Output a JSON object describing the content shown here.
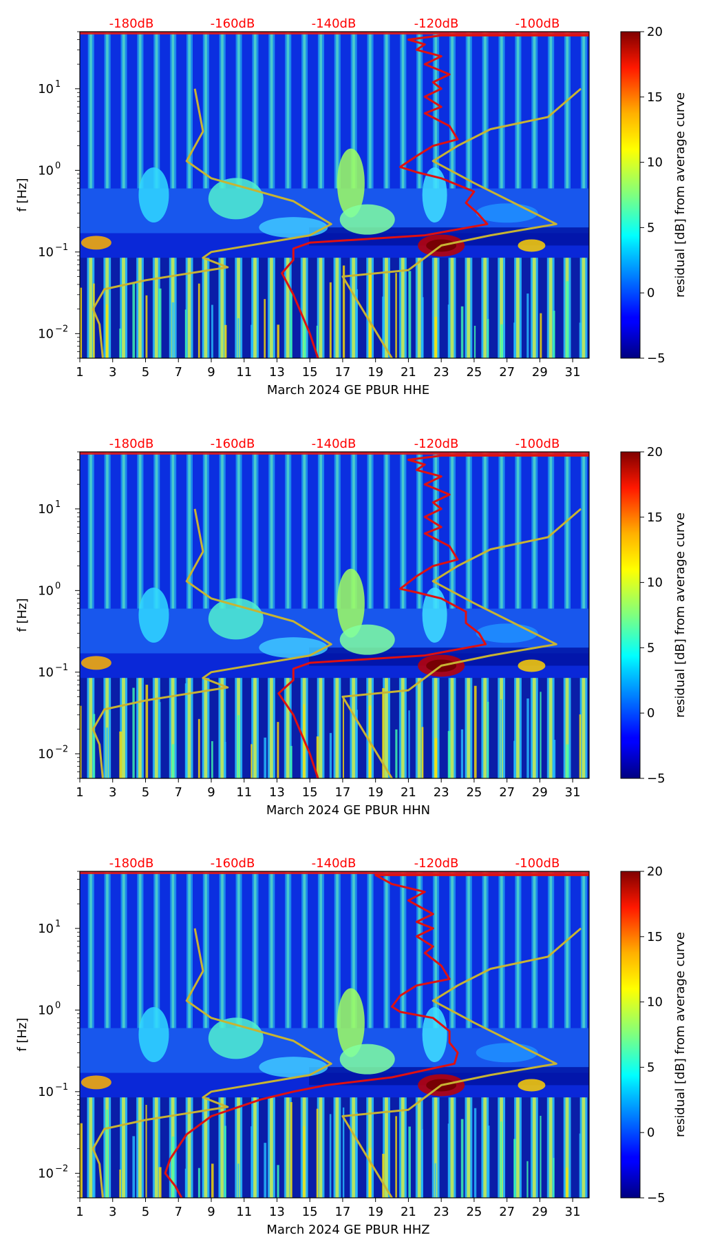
{
  "chart_data": [
    {
      "type": "heatmap",
      "panel_id": "p0",
      "xlabel": "March 2024 GE PBUR  HHE",
      "ylabel": "f [Hz]",
      "x_ticks": [
        "1",
        "3",
        "5",
        "7",
        "9",
        "11",
        "13",
        "15",
        "17",
        "19",
        "21",
        "23",
        "25",
        "27",
        "29",
        "31"
      ],
      "xlim": [
        1,
        32
      ],
      "y_scale": "log",
      "ylim": [
        0.005,
        50
      ],
      "y_tick_labels": [
        {
          "base": "10",
          "exp": "1"
        },
        {
          "base": "10",
          "exp": "0"
        },
        {
          "base": "10",
          "exp": "−1"
        },
        {
          "base": "10",
          "exp": "−2"
        }
      ],
      "top_axis_labels": [
        "-180dB",
        "-160dB",
        "-140dB",
        "-120dB",
        "-100dB"
      ],
      "colorbar": {
        "label": "residual [dB] from average curve",
        "ticks": [
          "20",
          "15",
          "10",
          "5",
          "0",
          "−5"
        ],
        "range": [
          -5,
          20
        ]
      },
      "series": [
        {
          "name": "noise model (yellow)",
          "color": "#c8b432",
          "points": [
            [
              8,
              10
            ],
            [
              8.5,
              3
            ],
            [
              7.5,
              1.3
            ],
            [
              9,
              0.8
            ],
            [
              14,
              0.42
            ],
            [
              16.3,
              0.22
            ],
            [
              15,
              0.16
            ],
            [
              9,
              0.1
            ],
            [
              8.5,
              0.085
            ],
            [
              10,
              0.065
            ],
            [
              5,
              0.045
            ],
            [
              2.5,
              0.035
            ],
            [
              1.8,
              0.02
            ],
            [
              2.2,
              0.013
            ],
            [
              2.4,
              0.005
            ]
          ]
        },
        {
          "name": "noise model right (yellow)",
          "color": "#c8b432",
          "points": [
            [
              31.5,
              10
            ],
            [
              29.5,
              4.5
            ],
            [
              26,
              3.2
            ],
            [
              24,
              2
            ],
            [
              22.5,
              1.3
            ],
            [
              25,
              0.7
            ],
            [
              30,
              0.22
            ],
            [
              26,
              0.16
            ],
            [
              23,
              0.12
            ],
            [
              21,
              0.06
            ],
            [
              17,
              0.05
            ],
            [
              20,
              0.005
            ]
          ]
        },
        {
          "name": "median PSD (red)",
          "color": "#e01010",
          "points": [
            [
              32,
              45
            ],
            [
              23,
              45
            ],
            [
              21,
              40
            ],
            [
              22,
              35
            ],
            [
              21.5,
              30
            ],
            [
              23,
              25
            ],
            [
              22,
              20
            ],
            [
              23.5,
              15
            ],
            [
              22.5,
              12
            ],
            [
              23,
              10
            ],
            [
              22,
              8
            ],
            [
              23,
              6
            ],
            [
              22,
              5
            ],
            [
              23.5,
              3.5
            ],
            [
              24,
              2.4
            ],
            [
              22.5,
              2
            ],
            [
              21.5,
              1.5
            ],
            [
              20.5,
              1.1
            ],
            [
              21.5,
              0.95
            ],
            [
              23,
              0.8
            ],
            [
              25,
              0.55
            ],
            [
              24.5,
              0.4
            ],
            [
              25.2,
              0.3
            ],
            [
              25.8,
              0.22
            ],
            [
              22,
              0.16
            ],
            [
              15,
              0.13
            ],
            [
              14,
              0.11
            ],
            [
              14,
              0.08
            ],
            [
              13.3,
              0.055
            ],
            [
              14,
              0.03
            ],
            [
              15,
              0.01
            ],
            [
              15.5,
              0.005
            ]
          ]
        }
      ]
    },
    {
      "type": "heatmap",
      "panel_id": "p1",
      "xlabel": "March 2024 GE PBUR  HHN",
      "ylabel": "f [Hz]",
      "x_ticks": [
        "1",
        "3",
        "5",
        "7",
        "9",
        "11",
        "13",
        "15",
        "17",
        "19",
        "21",
        "23",
        "25",
        "27",
        "29",
        "31"
      ],
      "xlim": [
        1,
        32
      ],
      "y_scale": "log",
      "ylim": [
        0.005,
        50
      ],
      "y_tick_labels": [
        {
          "base": "10",
          "exp": "1"
        },
        {
          "base": "10",
          "exp": "0"
        },
        {
          "base": "10",
          "exp": "−1"
        },
        {
          "base": "10",
          "exp": "−2"
        }
      ],
      "top_axis_labels": [
        "-180dB",
        "-160dB",
        "-140dB",
        "-120dB",
        "-100dB"
      ],
      "colorbar": {
        "label": "residual [dB] from average curve",
        "ticks": [
          "20",
          "15",
          "10",
          "5",
          "0",
          "−5"
        ],
        "range": [
          -5,
          20
        ]
      },
      "series": [
        {
          "name": "noise model (yellow)",
          "color": "#c8b432",
          "points": [
            [
              8,
              10
            ],
            [
              8.5,
              3
            ],
            [
              7.5,
              1.3
            ],
            [
              9,
              0.8
            ],
            [
              14,
              0.42
            ],
            [
              16.3,
              0.22
            ],
            [
              15,
              0.16
            ],
            [
              9,
              0.1
            ],
            [
              8.5,
              0.085
            ],
            [
              10,
              0.065
            ],
            [
              5,
              0.045
            ],
            [
              2.5,
              0.035
            ],
            [
              1.8,
              0.02
            ],
            [
              2.2,
              0.013
            ],
            [
              2.4,
              0.005
            ]
          ]
        },
        {
          "name": "noise model right (yellow)",
          "color": "#c8b432",
          "points": [
            [
              31.5,
              10
            ],
            [
              29.5,
              4.5
            ],
            [
              26,
              3.2
            ],
            [
              24,
              2
            ],
            [
              22.5,
              1.3
            ],
            [
              25,
              0.7
            ],
            [
              30,
              0.22
            ],
            [
              26,
              0.16
            ],
            [
              23,
              0.12
            ],
            [
              21,
              0.06
            ],
            [
              17,
              0.05
            ],
            [
              20,
              0.005
            ]
          ]
        },
        {
          "name": "median PSD (red)",
          "color": "#e01010",
          "points": [
            [
              32,
              45
            ],
            [
              23,
              45
            ],
            [
              21,
              40
            ],
            [
              22,
              35
            ],
            [
              21.5,
              30
            ],
            [
              23,
              25
            ],
            [
              22,
              20
            ],
            [
              23.5,
              15
            ],
            [
              22.5,
              12
            ],
            [
              23,
              10
            ],
            [
              22,
              8
            ],
            [
              23,
              6
            ],
            [
              22,
              5
            ],
            [
              23.5,
              3.5
            ],
            [
              24,
              2.4
            ],
            [
              22.5,
              2
            ],
            [
              21.5,
              1.5
            ],
            [
              20.5,
              1.05
            ],
            [
              21.5,
              0.95
            ],
            [
              23,
              0.8
            ],
            [
              24.5,
              0.55
            ],
            [
              24.5,
              0.4
            ],
            [
              25.3,
              0.3
            ],
            [
              25.7,
              0.22
            ],
            [
              22,
              0.16
            ],
            [
              15,
              0.13
            ],
            [
              14,
              0.11
            ],
            [
              14,
              0.08
            ],
            [
              13.1,
              0.055
            ],
            [
              14,
              0.03
            ],
            [
              15,
              0.01
            ],
            [
              15.5,
              0.005
            ]
          ]
        }
      ]
    },
    {
      "type": "heatmap",
      "panel_id": "p2",
      "xlabel": "March 2024 GE PBUR  HHZ",
      "ylabel": "f [Hz]",
      "x_ticks": [
        "1",
        "3",
        "5",
        "7",
        "9",
        "11",
        "13",
        "15",
        "17",
        "19",
        "21",
        "23",
        "25",
        "27",
        "29",
        "31"
      ],
      "xlim": [
        1,
        32
      ],
      "y_scale": "log",
      "ylim": [
        0.005,
        50
      ],
      "y_tick_labels": [
        {
          "base": "10",
          "exp": "1"
        },
        {
          "base": "10",
          "exp": "0"
        },
        {
          "base": "10",
          "exp": "−1"
        },
        {
          "base": "10",
          "exp": "−2"
        }
      ],
      "top_axis_labels": [
        "-180dB",
        "-160dB",
        "-140dB",
        "-120dB",
        "-100dB"
      ],
      "colorbar": {
        "label": "residual [dB] from average curve",
        "ticks": [
          "20",
          "15",
          "10",
          "5",
          "0",
          "−5"
        ],
        "range": [
          -5,
          20
        ]
      },
      "series": [
        {
          "name": "noise model (yellow)",
          "color": "#c8b432",
          "points": [
            [
              8,
              10
            ],
            [
              8.5,
              3
            ],
            [
              7.5,
              1.3
            ],
            [
              9,
              0.8
            ],
            [
              14,
              0.42
            ],
            [
              16.3,
              0.22
            ],
            [
              15,
              0.16
            ],
            [
              9,
              0.1
            ],
            [
              8.5,
              0.085
            ],
            [
              10,
              0.065
            ],
            [
              5,
              0.045
            ],
            [
              2.5,
              0.035
            ],
            [
              1.8,
              0.02
            ],
            [
              2.2,
              0.013
            ],
            [
              2.4,
              0.005
            ]
          ]
        },
        {
          "name": "noise model right (yellow)",
          "color": "#c8b432",
          "points": [
            [
              31.5,
              10
            ],
            [
              29.5,
              4.5
            ],
            [
              26,
              3.2
            ],
            [
              24,
              2
            ],
            [
              22.5,
              1.3
            ],
            [
              25,
              0.7
            ],
            [
              30,
              0.22
            ],
            [
              26,
              0.16
            ],
            [
              23,
              0.12
            ],
            [
              21,
              0.06
            ],
            [
              17,
              0.05
            ],
            [
              20,
              0.005
            ]
          ]
        },
        {
          "name": "median PSD (red)",
          "color": "#e01010",
          "points": [
            [
              32,
              45
            ],
            [
              19,
              45
            ],
            [
              20,
              35
            ],
            [
              22,
              28
            ],
            [
              21,
              22
            ],
            [
              22.5,
              15
            ],
            [
              21.5,
              12
            ],
            [
              22.5,
              10
            ],
            [
              21.5,
              8
            ],
            [
              22.5,
              6
            ],
            [
              22,
              5
            ],
            [
              23,
              3.5
            ],
            [
              23.5,
              2.4
            ],
            [
              21.5,
              2
            ],
            [
              20.5,
              1.5
            ],
            [
              20,
              1.1
            ],
            [
              20.5,
              0.95
            ],
            [
              22.5,
              0.8
            ],
            [
              23.5,
              0.55
            ],
            [
              23.5,
              0.4
            ],
            [
              24,
              0.3
            ],
            [
              23.8,
              0.22
            ],
            [
              20,
              0.15
            ],
            [
              16,
              0.12
            ],
            [
              14,
              0.1
            ],
            [
              12,
              0.08
            ],
            [
              9,
              0.05
            ],
            [
              7.5,
              0.03
            ],
            [
              6.5,
              0.015
            ],
            [
              6.2,
              0.01
            ],
            [
              6.8,
              0.007
            ],
            [
              7.2,
              0.005
            ]
          ]
        }
      ]
    }
  ]
}
